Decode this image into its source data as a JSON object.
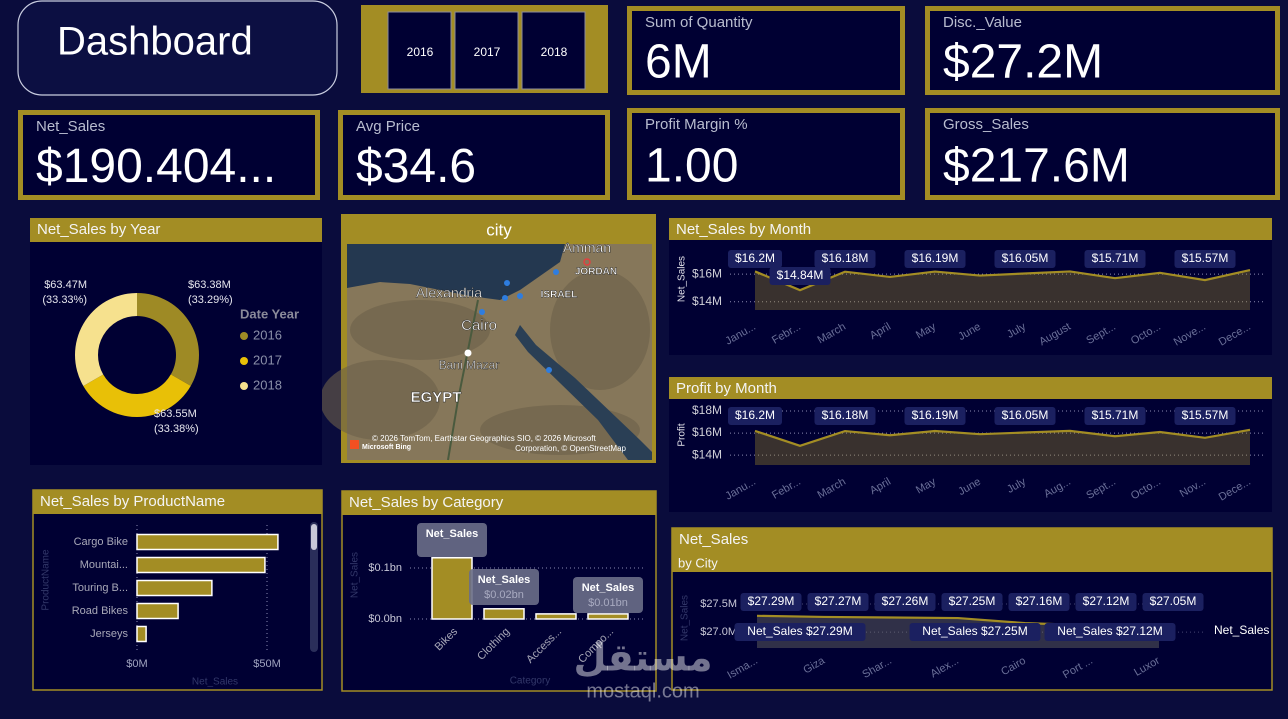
{
  "header": {
    "title": "Dashboard"
  },
  "slicer": {
    "items": [
      "2016",
      "2017",
      "2018"
    ]
  },
  "kpis": [
    {
      "label": "Sum of Quantity",
      "value": "6M"
    },
    {
      "label": "Disc._Value",
      "value": "$27.2M"
    },
    {
      "label": "Net_Sales",
      "value": "$190.404..."
    },
    {
      "label": "Avg Price",
      "value": "$34.6"
    },
    {
      "label": "Profit Margin %",
      "value": "1.00"
    },
    {
      "label": "Gross_Sales",
      "value": "$217.6M"
    }
  ],
  "map": {
    "title": "city",
    "places": [
      "Amman",
      "JORDAN",
      "Alexandria",
      "ISRAEL",
      "Cairo",
      "Bani Mazar",
      "EGYPT"
    ],
    "attribution": [
      "© 2026 TomTom, Earthstar Geographics SIO, © 2026 Microsoft",
      "Corporation, © OpenStreetMap"
    ],
    "provider": "Microsoft Bing"
  },
  "watermark": {
    "arabic": "مستقل",
    "latin": "mostaql.com"
  },
  "chart_data": [
    {
      "type": "donut",
      "title": "Net_Sales by Year",
      "legend_title": "Date Year",
      "legend": "right",
      "categories": [
        "2016",
        "2017",
        "2018"
      ],
      "values": [
        63.38,
        63.55,
        63.47
      ],
      "value_labels": [
        "$63.38M",
        "$63.55M",
        "$63.47M"
      ],
      "percent_labels": [
        "(33.29%)",
        "(33.38%)",
        "(33.33%)"
      ],
      "colors": [
        "#9e8a25",
        "#e8c007",
        "#f6e18e"
      ]
    },
    {
      "type": "area",
      "title": "Net_Sales by Month",
      "y_label": "Net_Sales",
      "categories": [
        "Janu...",
        "Febr...",
        "March",
        "April",
        "May",
        "June",
        "July",
        "August",
        "Sept...",
        "Octo...",
        "Nove...",
        "Dece..."
      ],
      "values": [
        16.2,
        14.84,
        16.18,
        15.8,
        16.19,
        15.9,
        16.05,
        16.2,
        15.71,
        16.1,
        15.57,
        16.3
      ],
      "value_labels": [
        "$16.2M",
        "$14.84M",
        "$16.18M",
        null,
        "$16.19M",
        null,
        "$16.05M",
        null,
        "$15.71M",
        null,
        "$15.57M",
        null
      ],
      "color": "#a38d24",
      "ylim": [
        13.4,
        17.9
      ],
      "yticks": [
        {
          "value": 14,
          "label": "$14M"
        },
        {
          "value": 16,
          "label": "$16M"
        }
      ],
      "grid": true
    },
    {
      "type": "area",
      "title": "Profit by Month",
      "y_label": "Profit",
      "categories": [
        "Janu...",
        "Febr...",
        "March",
        "April",
        "May",
        "June",
        "July",
        "Aug...",
        "Sept...",
        "Octo...",
        "Nov...",
        "Dece..."
      ],
      "values": [
        16.2,
        14.84,
        16.18,
        15.8,
        16.19,
        15.9,
        16.05,
        16.2,
        15.71,
        16.1,
        15.57,
        16.3
      ],
      "value_labels": [
        "$16.2M",
        null,
        "$16.18M",
        null,
        "$16.19M",
        null,
        "$16.05M",
        null,
        "$15.71M",
        null,
        "$15.57M",
        null
      ],
      "color": "#a38d24",
      "ylim": [
        13.1,
        18.55
      ],
      "yticks": [
        {
          "value": 14,
          "label": "$14M"
        },
        {
          "value": 16,
          "label": "$16M"
        },
        {
          "value": 18,
          "label": "$18M"
        }
      ],
      "grid": true
    },
    {
      "type": "hbar",
      "title": "Net_Sales by ProductName",
      "y_label": "ProductName",
      "x_label": "Net_Sales",
      "categories": [
        "Cargo Bike",
        "Mountai...",
        "Touring B...",
        "Road Bikes",
        "Jerseys"
      ],
      "values": [
        54.2,
        49.2,
        28.8,
        15.8,
        3.5
      ],
      "color": "#a38d24",
      "xlim": [
        0,
        60
      ],
      "xticks": [
        {
          "value": 0,
          "label": "$0M"
        },
        {
          "value": 50,
          "label": "$50M"
        }
      ],
      "grid": true
    },
    {
      "type": "column",
      "title": "Net_Sales by Category",
      "y_label": "Net_Sales",
      "x_label": "Category",
      "series_name": "Net_Sales",
      "categories": [
        "Bikes",
        "Clothing",
        "Access...",
        "Compo..."
      ],
      "values": [
        0.12,
        0.02,
        0.01,
        0.01
      ],
      "value_labels": [
        null,
        "$0.02bn",
        null,
        "$0.01bn"
      ],
      "color": "#a38d24",
      "ylim": [
        0,
        0.145
      ],
      "yticks": [
        {
          "value": 0,
          "label": "$0.0bn"
        },
        {
          "value": 0.1,
          "label": "$0.1bn"
        }
      ],
      "grid": true
    },
    {
      "type": "line",
      "title": "Net_Sales",
      "subtitle": "by City",
      "y_label": "Net_Sales",
      "series_name": "Net_Sales",
      "categories": [
        "Isma...",
        "Giza",
        "Shar...",
        "Alex...",
        "Cairo",
        "Port ...",
        "Luxor"
      ],
      "values": [
        27.29,
        27.27,
        27.26,
        27.25,
        27.16,
        27.12,
        27.05
      ],
      "value_labels": [
        "$27.29M",
        "$27.27M",
        "$27.26M",
        "$27.25M",
        "$27.16M",
        "$27.12M",
        "$27.05M"
      ],
      "tooltips": [
        "Net_Sales $27.29M",
        "Net_Sales $27.25M",
        "Net_Sales $27.12M"
      ],
      "color": "#a38d24",
      "ylim": [
        26.77,
        27.75
      ],
      "yticks": [
        {
          "value": 27,
          "label": "$27.0M"
        },
        {
          "value": 27.5,
          "label": "$27.5M"
        }
      ],
      "grid": true
    }
  ]
}
